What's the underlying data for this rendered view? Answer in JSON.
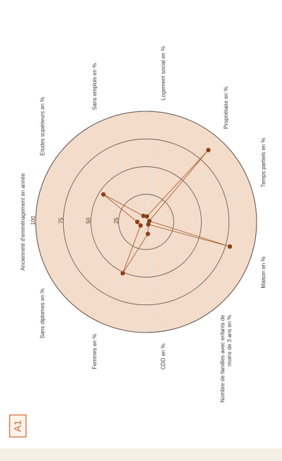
{
  "page": {
    "badge_label": "A1",
    "colors": {
      "badge_border": "#c9642a",
      "badge_text": "#c9642a",
      "badge_fill": "#fdf3ea",
      "disc_fill": "#f4dccb",
      "disc_stroke": "#7a6a62",
      "grid_stroke": "#6b5e57",
      "spoke_stroke": "#e9e1da",
      "series_line": "#b16a3d",
      "series_marker": "#8a3f15",
      "label_text": "#3a3a3a",
      "scale_text": "#5a3a20"
    }
  },
  "chart_data": {
    "type": "radar",
    "title": "",
    "orientation": "rotated 90 degrees clockwise",
    "rmax": 100,
    "rings": [
      25,
      50,
      75,
      100
    ],
    "ring_labels": [
      "25",
      "50",
      "75",
      "100"
    ],
    "grid": true,
    "legend": "none",
    "axes": [
      "Ancienneté d'emménagement en année",
      "Etudes supérieurs en %",
      "Sans emplois en %",
      "Logement social en %",
      "Propriétaire en %",
      "Temps partiels en %",
      "Maison en %",
      "Nombre de familles avec enfants de moins de 3 ans en %",
      "CDD en %",
      "Femmes en %",
      "Sans diplomes en %"
    ],
    "series": [
      {
        "values": [
          8,
          46,
          6,
          5,
          86,
          3,
          79,
          3,
          11,
          51,
          6
        ]
      }
    ]
  }
}
